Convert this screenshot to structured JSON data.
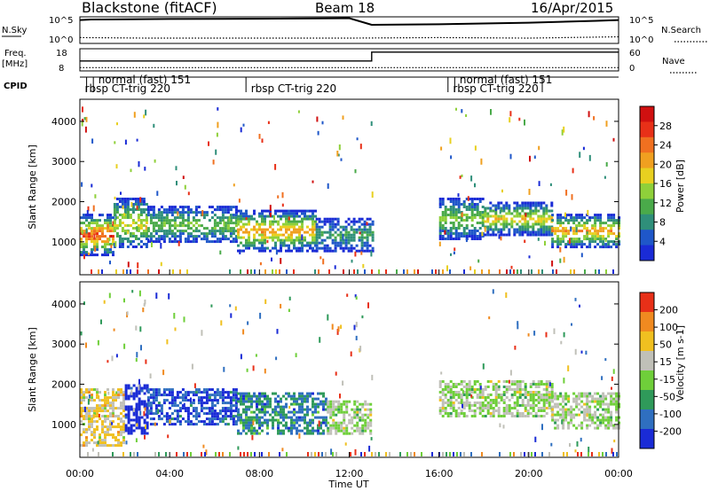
{
  "header": {
    "station": "Blackstone (fitACF)",
    "beam": "Beam 18",
    "date": "16/Apr/2015"
  },
  "chart_data": {
    "type": "heatmap",
    "time_axis": {
      "label": "Time UT",
      "ticks": [
        "00:00",
        "04:00",
        "08:00",
        "12:00",
        "16:00",
        "20:00",
        "00:00"
      ],
      "range_hours": [
        0,
        24
      ]
    },
    "sky_panel": {
      "left_label": "N.Sky",
      "right_label": "N.Search",
      "left_ticks": [
        "10^5",
        "10^0"
      ],
      "right_ticks": [
        "10^5",
        "10^0"
      ],
      "n_sky_profile": [
        [
          0,
          0.12
        ],
        [
          0.5,
          0.1
        ],
        [
          4,
          0.08
        ],
        [
          8,
          0.07
        ],
        [
          12,
          0.05
        ],
        [
          13,
          0.3
        ],
        [
          16,
          0.28
        ],
        [
          20,
          0.22
        ],
        [
          23,
          0.15
        ],
        [
          24,
          0.12
        ]
      ],
      "n_search_profile": [
        [
          0,
          0.78
        ],
        [
          3,
          0.8
        ],
        [
          8,
          0.8
        ],
        [
          12,
          0.8
        ],
        [
          16,
          0.78
        ],
        [
          20,
          0.8
        ],
        [
          24,
          0.75
        ]
      ]
    },
    "freq_panel": {
      "left_label": "Freq.",
      "left_unit": "[MHz]",
      "right_label": "Nave",
      "left_ticks": [
        "18",
        "8"
      ],
      "right_ticks": [
        "60",
        "0"
      ],
      "freq_profile": [
        [
          0,
          0.55
        ],
        [
          13,
          0.55
        ],
        [
          13,
          0.15
        ],
        [
          24,
          0.15
        ]
      ],
      "nave_profile": [
        [
          0,
          0.85
        ],
        [
          24,
          0.85
        ]
      ]
    },
    "cpid": {
      "label": "CPID",
      "changes_hours": [
        0.3,
        0.6,
        7.4,
        16.4,
        16.7,
        20.6
      ],
      "segments": [
        {
          "text": "normal (fast) 151",
          "hour": 0.7,
          "row": 1
        },
        {
          "text": "rbsp CT-trig 220",
          "hour": 0.1,
          "row": 2
        },
        {
          "text": "rbsp CT-trig 220",
          "hour": 7.5,
          "row": 2
        },
        {
          "text": "normal (fast) 151",
          "hour": 16.8,
          "row": 1
        },
        {
          "text": "rbsp CT-trig 220",
          "hour": 16.5,
          "row": 2
        }
      ]
    },
    "range_axis": {
      "label": "Slant Range [km]",
      "ticks": [
        1000,
        2000,
        3000,
        4000
      ],
      "range_km": [
        180,
        4550
      ]
    },
    "power": {
      "colorbar_label": "Power [dB]",
      "colorbar_ticks": [
        "28",
        "24",
        "20",
        "16",
        "12",
        "8",
        "4"
      ],
      "colors": [
        "#1a2bd6",
        "#1f57c9",
        "#2f8f7a",
        "#4aaa4a",
        "#8fd03a",
        "#e8d020",
        "#f0a020",
        "#f07020",
        "#e83018",
        "#d01010"
      ],
      "bands": [
        {
          "t0": 0.0,
          "t1": 1.5,
          "r0": 700,
          "r1": 1700,
          "v": 0.85
        },
        {
          "t0": 1.5,
          "t1": 3.0,
          "r0": 850,
          "r1": 2100,
          "v": 0.55
        },
        {
          "t0": 3.0,
          "t1": 7.0,
          "r0": 1000,
          "r1": 1900,
          "v": 0.4
        },
        {
          "t0": 7.0,
          "t1": 10.5,
          "r0": 800,
          "r1": 1800,
          "v": 0.7
        },
        {
          "t0": 10.5,
          "t1": 13.0,
          "r0": 800,
          "r1": 1600,
          "v": 0.3
        },
        {
          "t0": 16.0,
          "t1": 18.0,
          "r0": 1100,
          "r1": 2100,
          "v": 0.45
        },
        {
          "t0": 18.0,
          "t1": 21.0,
          "r0": 1200,
          "r1": 2000,
          "v": 0.6
        },
        {
          "t0": 21.0,
          "t1": 24.0,
          "r0": 900,
          "r1": 1700,
          "v": 0.7
        }
      ]
    },
    "velocity": {
      "colorbar_label": "Velocity [m s-1]",
      "colorbar_ticks": [
        "200",
        "100",
        "50",
        "15",
        "-15",
        "-50",
        "-100",
        "-200"
      ],
      "colors": [
        "#1a2bd6",
        "#2f6fc0",
        "#2f9a5a",
        "#6fcf3a",
        "#c0c0b8",
        "#f0c020",
        "#f08a20",
        "#e83018"
      ],
      "bands": [
        {
          "t0": 0.0,
          "t1": 2.0,
          "r0": 500,
          "r1": 1900,
          "v": 5
        },
        {
          "t0": 2.0,
          "t1": 3.0,
          "r0": 800,
          "r1": 2000,
          "v": 0
        },
        {
          "t0": 3.0,
          "t1": 7.0,
          "r0": 1000,
          "r1": 1900,
          "v": 1
        },
        {
          "t0": 7.0,
          "t1": 11.0,
          "r0": 800,
          "r1": 1800,
          "v": 2
        },
        {
          "t0": 11.0,
          "t1": 13.0,
          "r0": 800,
          "r1": 1600,
          "v": 4
        },
        {
          "t0": 16.0,
          "t1": 21.0,
          "r0": 1200,
          "r1": 2100,
          "v": 4
        },
        {
          "t0": 21.0,
          "t1": 24.0,
          "r0": 900,
          "r1": 1800,
          "v": 4
        }
      ]
    }
  }
}
